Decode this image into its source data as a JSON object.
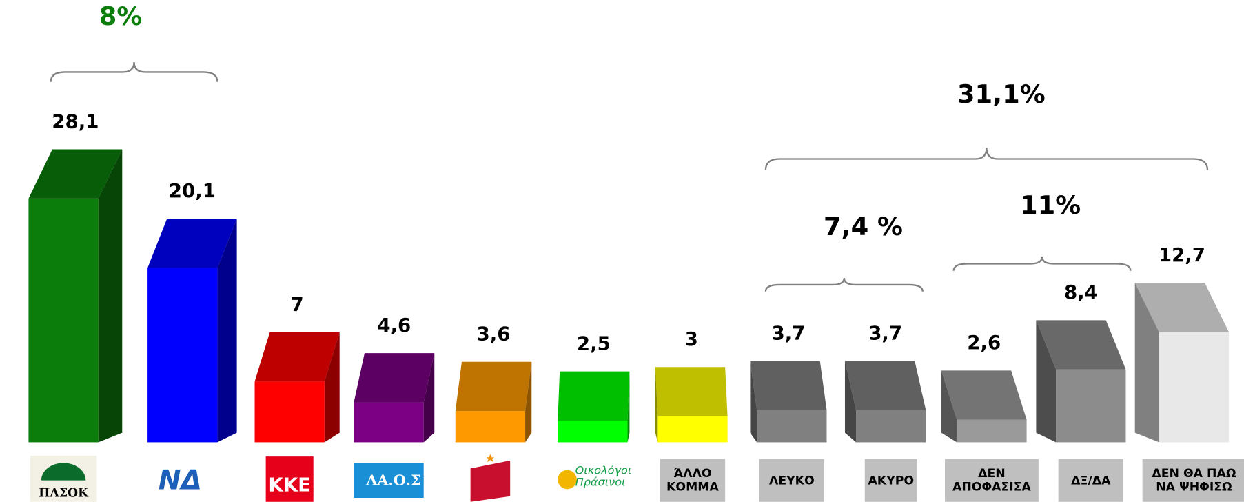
{
  "chart_data": {
    "type": "bar3d",
    "categories": [
      "ΠΑΣΟΚ",
      "ΝΔ",
      "ΚΚΕ",
      "ΛΑ.Ο.Σ",
      null,
      "Οικολόγοι Πράσινοι",
      "ΆΛΛΟ ΚΟΜΜΑ",
      "ΛΕΥΚΟ",
      "ΑΚΥΡΟ",
      "ΔΕΝ ΑΠΟΦΑΣΙΣΑ",
      "ΔΞ/ΔΑ",
      "ΔΕΝ ΘΑ ΠΑΩ ΝΑ ΨΗΦΙΣΩ"
    ],
    "values": [
      28.1,
      20.1,
      7,
      4.6,
      3.6,
      2.5,
      3,
      3.7,
      3.7,
      2.6,
      8.4,
      12.7
    ],
    "value_labels": [
      "28,1",
      "20,1",
      "7",
      "4,6",
      "3,6",
      "2,5",
      "3",
      "3,7",
      "3,7",
      "2,6",
      "8,4",
      "12,7"
    ],
    "colors": [
      "#0a7d0a",
      "#0000ff",
      "#ff0000",
      "#7b0084",
      "#ff9900",
      "#00ff00",
      "#ffff00",
      "#808080",
      "#808080",
      "#9a9a9a",
      "#8c8c8c",
      "#e8e8e8"
    ],
    "annotations": [
      {
        "text": "8%",
        "color": "#0a7d0a"
      },
      {
        "text": "31,1%",
        "color": "#000000"
      },
      {
        "text": "7,4 %",
        "color": "#000000"
      },
      {
        "text": "11%",
        "color": "#000000"
      }
    ]
  }
}
